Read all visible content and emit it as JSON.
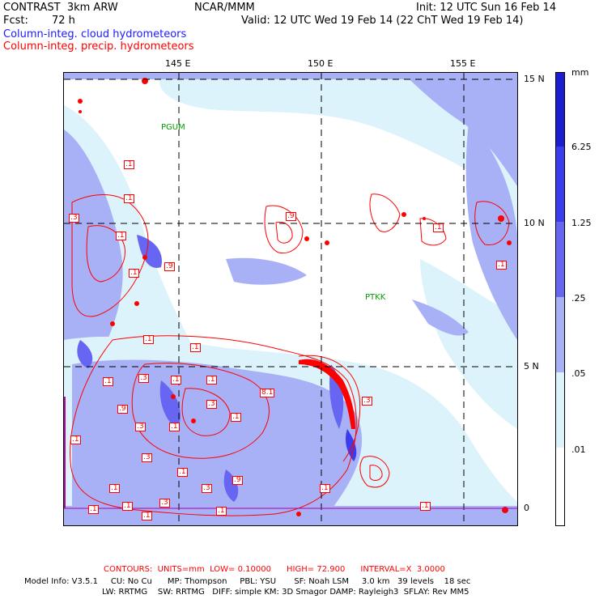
{
  "header": {
    "title_left": "CONTRAST  3km ARW",
    "center": "NCAR/MMM",
    "init": "Init: 12 UTC Sun 16 Feb 14",
    "fcst_label": "Fcst:",
    "fcst_value": "72 h",
    "valid": "Valid: 12 UTC Wed 19 Feb 14 (22 ChT Wed 19 Feb 14)",
    "field_cloud": "Column-integ. cloud hydrometeors",
    "field_precip": "Column-integ. precip. hydrometeors"
  },
  "axes": {
    "lon_labels": [
      "145 E",
      "150 E",
      "155 E"
    ],
    "lat_labels": [
      "15 N",
      "10 N",
      "5 N",
      "0"
    ]
  },
  "stations": [
    "PGUM",
    "PTKK"
  ],
  "contour_labels": [
    ".1",
    ".1",
    ".3",
    ".1",
    ".9",
    ".1",
    ".9",
    ".1",
    ".1",
    ".1",
    ".1",
    ".1",
    ".3",
    ".1",
    ".1",
    "8.1",
    ".3",
    ".9",
    ".3",
    ".1",
    ".1",
    ".1",
    ".3",
    ".1",
    ".3",
    ".9",
    ".1",
    ".1",
    ".1",
    ".1",
    ".3",
    ".1",
    ".1",
    ".3",
    ".1"
  ],
  "legend": {
    "unit": "mm",
    "levels": [
      "6.25",
      "1.25",
      ".25",
      ".05",
      ".01"
    ],
    "colors": [
      "#1c1cd0",
      "#3b3bf0",
      "#6666f2",
      "#a8b0f6",
      "#dcf3fb",
      "#ffffff"
    ]
  },
  "footer": {
    "contours": "CONTOURS:  UNITS=mm  LOW= 0.10000      HIGH= 72.900      INTERVAL=X  3.0000",
    "model_line1": "Model Info: V3.5.1     CU: No Cu      MP: Thompson     PBL: YSU       SF: Noah LSM     3.0 km   39 levels    18 sec",
    "model_line2": "LW: RRTMG    SW: RRTMG   DIFF: simple KM: 3D Smagor DAMP: Rayleigh3  SFLAY: Rev MM5"
  }
}
